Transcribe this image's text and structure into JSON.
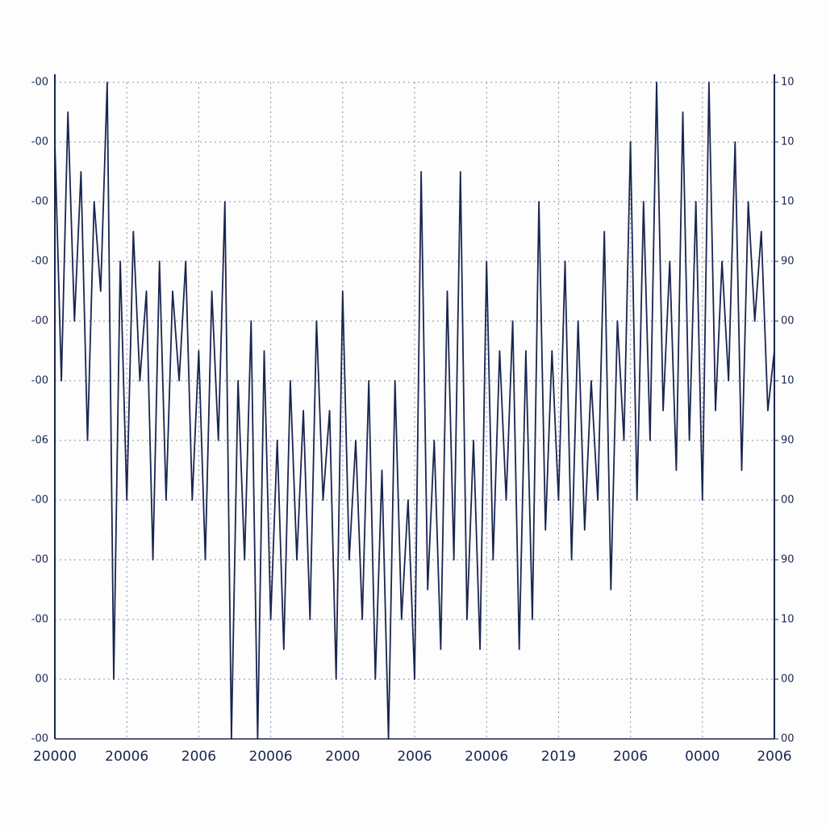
{
  "chart_data": {
    "type": "line",
    "x": [
      0,
      1,
      2,
      3,
      4,
      5,
      6,
      7,
      8,
      9,
      10,
      11,
      12,
      13,
      14,
      15,
      16,
      17,
      18,
      19,
      20,
      21,
      22,
      23,
      24,
      25,
      26,
      27,
      28,
      29,
      30,
      31,
      32,
      33,
      34,
      35,
      36,
      37,
      38,
      39,
      40,
      41,
      42,
      43,
      44,
      45,
      46,
      47,
      48,
      49,
      50,
      51,
      52,
      53,
      54,
      55,
      56,
      57,
      58,
      59,
      60,
      61,
      62,
      63,
      64,
      65,
      66,
      67,
      68,
      69,
      70,
      71,
      72,
      73,
      74,
      75,
      76,
      77,
      78,
      79,
      80,
      81,
      82,
      83,
      84,
      85,
      86,
      87,
      88,
      89,
      90,
      91,
      92,
      93,
      94,
      95,
      96,
      97,
      98,
      99,
      100,
      101,
      102,
      103,
      104,
      105,
      106,
      107,
      108,
      109,
      110
    ],
    "series": [
      {
        "color": "#1a2550",
        "values": [
          10,
          6,
          10.5,
          7,
          9.5,
          5,
          9,
          7.5,
          11,
          1,
          8,
          4,
          8.5,
          6,
          7.5,
          3,
          8,
          4,
          7.5,
          6,
          8,
          4,
          6.5,
          3,
          7.5,
          5,
          9,
          0,
          6,
          3,
          7,
          0,
          6.5,
          2,
          5,
          1.5,
          6,
          3,
          5.5,
          2,
          7,
          4,
          5.5,
          1,
          7.5,
          3,
          5,
          2,
          6,
          1,
          4.5,
          0,
          6,
          2,
          4,
          1,
          9.5,
          2.5,
          5,
          1.5,
          7.5,
          3,
          9.5,
          2,
          5,
          1.5,
          8,
          3,
          6.5,
          4,
          7,
          1.5,
          6.5,
          2,
          9,
          3.5,
          6.5,
          4,
          8,
          3,
          7,
          3.5,
          6,
          4,
          8.5,
          2.5,
          7,
          5,
          10,
          4,
          9,
          5,
          11,
          5.5,
          8,
          4.5,
          10.5,
          5,
          9,
          4,
          11,
          5.5,
          8,
          6,
          10,
          4.5,
          9,
          7,
          8.5,
          5.5,
          6.5
        ]
      }
    ],
    "xlim": [
      0,
      110
    ],
    "xticks": [
      {
        "value": 0,
        "label": "20000"
      },
      {
        "value": 11,
        "label": "20006"
      },
      {
        "value": 22,
        "label": "2006"
      },
      {
        "value": 33,
        "label": "20006"
      },
      {
        "value": 44,
        "label": "2000"
      },
      {
        "value": 55,
        "label": "2006"
      },
      {
        "value": 66,
        "label": "20006"
      },
      {
        "value": 77,
        "label": "2019"
      },
      {
        "value": 88,
        "label": "2006"
      },
      {
        "value": 99,
        "label": "0000"
      },
      {
        "value": 110,
        "label": "2006"
      }
    ],
    "ylim": [
      0,
      11
    ],
    "yticks": [
      {
        "value": 0,
        "label": "-00"
      },
      {
        "value": 1,
        "label": "00"
      },
      {
        "value": 2,
        "label": "-00"
      },
      {
        "value": 3,
        "label": "-00"
      },
      {
        "value": 4,
        "label": "-00"
      },
      {
        "value": 5,
        "label": "-06"
      },
      {
        "value": 6,
        "label": "-00"
      },
      {
        "value": 7,
        "label": "-00"
      },
      {
        "value": 8,
        "label": "-00"
      },
      {
        "value": 9,
        "label": "-00"
      },
      {
        "value": 10,
        "label": "-00"
      },
      {
        "value": 11,
        "label": "-00"
      }
    ],
    "y2lim": [
      0,
      11
    ],
    "y2ticks": [
      {
        "value": 0,
        "label": "00"
      },
      {
        "value": 1,
        "label": "00"
      },
      {
        "value": 2,
        "label": "10"
      },
      {
        "value": 3,
        "label": "90"
      },
      {
        "value": 4,
        "label": "00"
      },
      {
        "value": 5,
        "label": "90"
      },
      {
        "value": 6,
        "label": "10"
      },
      {
        "value": 7,
        "label": "00"
      },
      {
        "value": 8,
        "label": "90"
      },
      {
        "value": 9,
        "label": "10"
      },
      {
        "value": 10,
        "label": "10"
      },
      {
        "value": 11,
        "label": "10"
      }
    ],
    "grid": true
  }
}
